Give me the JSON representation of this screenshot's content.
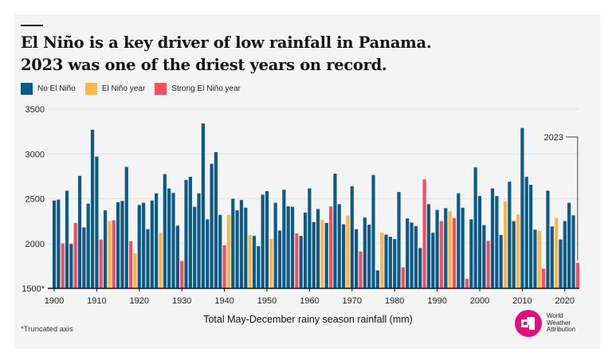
{
  "title_line1": "El Niño is a key driver of low rainfall in Panama.",
  "title_line2": "2023 was one of the driest years on record.",
  "legend": [
    {
      "key": "n",
      "label": "No El Niño",
      "color": "#0c5a85"
    },
    {
      "key": "e",
      "label": "El Niño year",
      "color": "#fbb64a"
    },
    {
      "key": "s",
      "label": "Strong El Niño year",
      "color": "#f2505e"
    }
  ],
  "footnote": "*Truncated axis",
  "logo": {
    "line1": "World",
    "line2": "Weather",
    "line3": "Attribution",
    "color": "#e2107c"
  },
  "chart_data": {
    "type": "bar",
    "title": "El Niño is a key driver of low rainfall in Panama. 2023 was one of the driest years on record.",
    "xlabel": "Total May-December rainy season rainfall (mm)",
    "ylabel": "",
    "ylim": [
      1500,
      3500
    ],
    "y_ticks": [
      "1500*",
      "2000",
      "2500",
      "3000",
      "3500"
    ],
    "y_tick_values": [
      1500,
      2000,
      2500,
      3000,
      3500
    ],
    "x_ticks": [
      1900,
      1910,
      1920,
      1930,
      1940,
      1950,
      1960,
      1970,
      1980,
      1990,
      2000,
      2010,
      2020
    ],
    "grid": true,
    "annotation": {
      "year": 2023,
      "label": "2023"
    },
    "years": [
      1900,
      1901,
      1902,
      1903,
      1904,
      1905,
      1906,
      1907,
      1908,
      1909,
      1910,
      1911,
      1912,
      1913,
      1914,
      1915,
      1916,
      1917,
      1918,
      1919,
      1920,
      1921,
      1922,
      1923,
      1924,
      1925,
      1926,
      1927,
      1928,
      1929,
      1930,
      1931,
      1932,
      1933,
      1934,
      1935,
      1936,
      1937,
      1938,
      1939,
      1940,
      1941,
      1942,
      1943,
      1944,
      1945,
      1946,
      1947,
      1948,
      1949,
      1950,
      1951,
      1952,
      1953,
      1954,
      1955,
      1956,
      1957,
      1958,
      1959,
      1960,
      1961,
      1962,
      1963,
      1964,
      1965,
      1966,
      1967,
      1968,
      1969,
      1970,
      1971,
      1972,
      1973,
      1974,
      1975,
      1976,
      1977,
      1978,
      1979,
      1980,
      1981,
      1982,
      1983,
      1984,
      1985,
      1986,
      1987,
      1988,
      1989,
      1990,
      1991,
      1992,
      1993,
      1994,
      1995,
      1996,
      1997,
      1998,
      1999,
      2000,
      2001,
      2002,
      2003,
      2004,
      2005,
      2006,
      2007,
      2008,
      2009,
      2010,
      2011,
      2012,
      2013,
      2014,
      2015,
      2016,
      2017,
      2018,
      2019,
      2020,
      2021,
      2022,
      2023
    ],
    "values": [
      2480,
      2490,
      2000,
      2590,
      1995,
      2230,
      2755,
      2180,
      2445,
      3270,
      2970,
      2045,
      2370,
      2250,
      2260,
      2460,
      2475,
      2855,
      2025,
      1890,
      2430,
      2455,
      2160,
      2480,
      2560,
      2120,
      2775,
      2615,
      2565,
      2200,
      1805,
      2710,
      2745,
      2410,
      2560,
      3340,
      2270,
      2890,
      3020,
      2320,
      1980,
      2320,
      2500,
      2370,
      2485,
      2400,
      2095,
      2085,
      1970,
      2545,
      2585,
      2050,
      2455,
      2145,
      2600,
      2415,
      2410,
      2115,
      2085,
      2345,
      2615,
      2240,
      2385,
      2265,
      2230,
      2415,
      2780,
      2440,
      2215,
      2310,
      2640,
      2160,
      1910,
      2290,
      2210,
      2765,
      1700,
      2125,
      2100,
      2075,
      2050,
      2575,
      1735,
      2280,
      2235,
      2195,
      1950,
      2715,
      2440,
      2120,
      2375,
      2250,
      2395,
      2360,
      2285,
      2560,
      2400,
      1605,
      2270,
      2850,
      2530,
      2205,
      2030,
      2615,
      2530,
      2095,
      2470,
      2690,
      2250,
      2325,
      3290,
      2745,
      2655,
      2155,
      2140,
      1720,
      2590,
      2190,
      2285,
      2045,
      2250,
      2455,
      2315,
      1785
    ],
    "enso": [
      "n",
      "n",
      "s",
      "n",
      "n",
      "s",
      "n",
      "n",
      "n",
      "n",
      "n",
      "s",
      "n",
      "e",
      "s",
      "n",
      "n",
      "n",
      "s",
      "e",
      "n",
      "n",
      "n",
      "n",
      "n",
      "e",
      "n",
      "n",
      "n",
      "n",
      "s",
      "n",
      "n",
      "n",
      "n",
      "n",
      "n",
      "n",
      "n",
      "n",
      "s",
      "e",
      "n",
      "n",
      "n",
      "n",
      "e",
      "n",
      "n",
      "n",
      "n",
      "e",
      "n",
      "n",
      "n",
      "n",
      "n",
      "s",
      "n",
      "n",
      "n",
      "n",
      "n",
      "e",
      "n",
      "s",
      "n",
      "n",
      "n",
      "e",
      "n",
      "n",
      "s",
      "n",
      "n",
      "n",
      "n",
      "e",
      "n",
      "n",
      "n",
      "n",
      "s",
      "n",
      "n",
      "n",
      "n",
      "s",
      "n",
      "n",
      "n",
      "s",
      "n",
      "e",
      "s",
      "n",
      "n",
      "s",
      "n",
      "n",
      "n",
      "n",
      "s",
      "n",
      "n",
      "n",
      "e",
      "n",
      "n",
      "e",
      "n",
      "n",
      "n",
      "n",
      "e",
      "s",
      "n",
      "n",
      "e",
      "n",
      "n",
      "n",
      "n",
      "s"
    ]
  }
}
